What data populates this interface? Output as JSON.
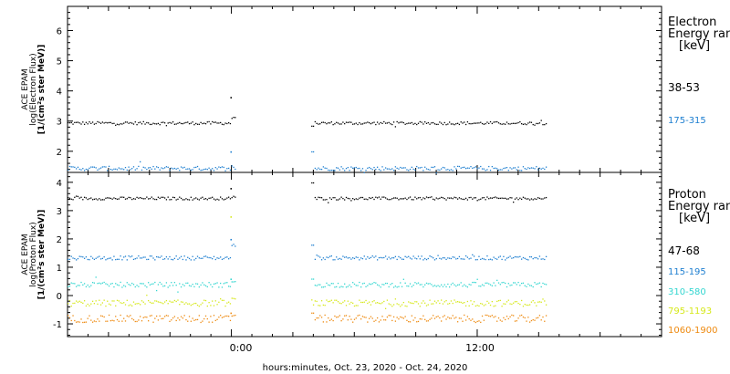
{
  "chart_data": [
    {
      "type": "scatter",
      "panel": "electron",
      "ylabel_lines": [
        "ACE EPAM",
        "log(Electron Flux)",
        "[1/(cm²s ster MeV)]"
      ],
      "ylim": [
        1.3,
        6.8
      ],
      "yticks": [
        2,
        3,
        4,
        5,
        6
      ],
      "legend_title": [
        "Electron",
        "Energy ran",
        "[keV]"
      ],
      "series": [
        {
          "name": "38-53",
          "color": "#000000",
          "level": 2.95,
          "spike_start": 3.8,
          "spike_end": 3.1,
          "gap_restart": 2.85
        },
        {
          "name": "175-315",
          "color": "#1e7fd0",
          "level": 1.45,
          "spike_start": 2.0,
          "spike_end": 1.5,
          "gap_restart": 2.0
        }
      ]
    },
    {
      "type": "scatter",
      "panel": "proton",
      "ylabel_lines": [
        "ACE EPAM",
        "log(Proton Flux)",
        "[1/(cm²s ster MeV)]"
      ],
      "ylim": [
        -1.45,
        4.35
      ],
      "yticks": [
        -1,
        0,
        1,
        2,
        3,
        4
      ],
      "legend_title": [
        "Proton",
        "Energy ran",
        "[keV]"
      ],
      "series": [
        {
          "name": "47-68",
          "color": "#000000",
          "level": 3.45,
          "spike_start": 3.8,
          "spike_end": 3.5,
          "gap_restart": 4.0
        },
        {
          "name": "115-195",
          "color": "#1e7fd0",
          "level": 1.35,
          "spike_start": 2.0,
          "spike_end": 1.8,
          "gap_restart": 1.8
        },
        {
          "name": "310-580",
          "color": "#33d6d0",
          "level": 0.4,
          "spike_start": 0.6,
          "spike_end": 0.5,
          "gap_restart": 0.6
        },
        {
          "name": "795-1193",
          "color": "#d6e81a",
          "level": -0.25,
          "spike_start": 2.8,
          "spike_end": -0.1,
          "gap_restart": -0.1
        },
        {
          "name": "1060-1900",
          "color": "#ee8a10",
          "level": -0.8,
          "spike_start": -0.6,
          "spike_end": -0.7,
          "gap_restart": -0.6
        }
      ]
    }
  ],
  "x_axis": {
    "tick_labels": [
      "0:00",
      "12:00"
    ],
    "xlabel": "hours:minutes, Oct. 23, 2020 - Oct. 24, 2020",
    "hours_range": [
      -8,
      21
    ],
    "major_ticks_hours": [
      0,
      12
    ],
    "data_segments_hours": [
      [
        -8,
        0.2
      ],
      [
        3.9,
        15.4
      ]
    ]
  }
}
